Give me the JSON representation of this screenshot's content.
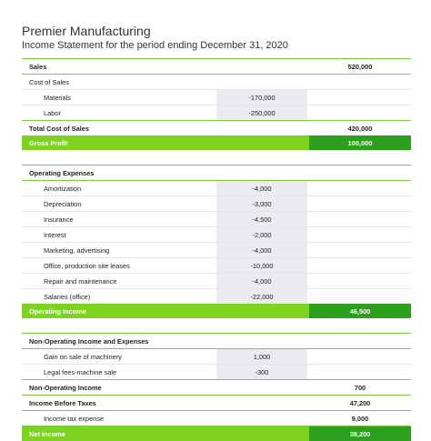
{
  "company": "Premier Manufacturing",
  "subtitle": "Income Statement for the period ending December 31, 2020",
  "sales": {
    "label": "Sales",
    "total": "520,000"
  },
  "cost_of_sales": {
    "label": "Cost of Sales",
    "items": [
      {
        "label": "Materials",
        "value": "-170,000"
      },
      {
        "label": "Labor",
        "value": "-250,000"
      }
    ],
    "total_label": "Total Cost of Sales",
    "total": "420,000"
  },
  "gross_profit": {
    "label": "Gross Profit",
    "total": "100,000"
  },
  "operating_expenses": {
    "label": "Operating Expenses",
    "items": [
      {
        "label": "Amortization",
        "value": "-4,000"
      },
      {
        "label": "Depreciation",
        "value": "-3,000"
      },
      {
        "label": "Insurance",
        "value": "-4,500"
      },
      {
        "label": "Interest",
        "value": "-2,000"
      },
      {
        "label": "Marketing, advertising",
        "value": "-4,000"
      },
      {
        "label": "Office, production site leases",
        "value": "-10,000"
      },
      {
        "label": "Repair and maintenance",
        "value": "-4,000"
      },
      {
        "label": "Salaries (office)",
        "value": "-22,000"
      }
    ]
  },
  "operating_income": {
    "label": "Operating Income",
    "total": "46,500"
  },
  "non_operating": {
    "label": "Non-Operating Income and Expenses",
    "items": [
      {
        "label": "Gain on sale of machinery",
        "value": "1,000"
      },
      {
        "label": "Legal fees-machine sale",
        "value": "-300"
      }
    ],
    "total_label": "Non-Operating Income",
    "total": "700"
  },
  "income_before_taxes": {
    "label": "Income Before Taxes",
    "total": "47,200"
  },
  "income_tax": {
    "label": "Income tax expense",
    "total": "9,000"
  },
  "net_income": {
    "label": "Net Income",
    "total": "38,200"
  },
  "colors": {
    "accent_light": "#7ed321",
    "accent_dark": "#2ca01c",
    "shade": "#ebebf0"
  }
}
